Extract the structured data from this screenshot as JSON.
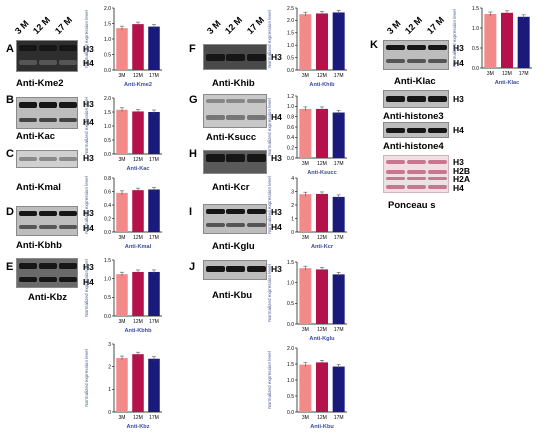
{
  "ages": [
    "3 M",
    "12 M",
    "17 M"
  ],
  "colors": {
    "bar_3M": "#f38a8a",
    "bar_12M": "#b3124b",
    "bar_17M": "#1a1a7a",
    "axis_title": "#4a5a9a",
    "chart_title": "#3a4ba3"
  },
  "panels": [
    {
      "letter": "A",
      "antibody": "Anti-Kme2",
      "bands": [
        "H3",
        "H4"
      ]
    },
    {
      "letter": "B",
      "antibody": "Anti-Kac",
      "bands": [
        "H3",
        "H4"
      ]
    },
    {
      "letter": "C",
      "antibody": "Anti-Kmal",
      "bands": [
        "H3"
      ]
    },
    {
      "letter": "D",
      "antibody": "Anti-Kbhb",
      "bands": [
        "H3",
        "H4"
      ]
    },
    {
      "letter": "E",
      "antibody": "Anti-Kbz",
      "bands": [
        "H3",
        "H4"
      ]
    },
    {
      "letter": "F",
      "antibody": "Anti-Khib",
      "bands": [
        "H3"
      ]
    },
    {
      "letter": "G",
      "antibody": "Anti-Ksucc",
      "bands": [
        "H4"
      ]
    },
    {
      "letter": "H",
      "antibody": "Anti-Kcr",
      "bands": [
        "H3"
      ]
    },
    {
      "letter": "I",
      "antibody": "Anti-Kglu",
      "bands": [
        "H3",
        "H4"
      ]
    },
    {
      "letter": "J",
      "antibody": "Anti-Kbu",
      "bands": [
        "H3"
      ]
    },
    {
      "letter": "K",
      "antibody": "Anti-Klac",
      "bands": [
        "H3",
        "H4"
      ]
    }
  ],
  "loading_controls": [
    {
      "antibody": "Anti-histone3",
      "bands": [
        "H3"
      ]
    },
    {
      "antibody": "Anti-histone4",
      "bands": [
        "H4"
      ]
    },
    {
      "antibody": "Ponceau s",
      "bands": [
        "H3",
        "H2B",
        "H2A",
        "H4"
      ]
    }
  ],
  "chart_data": [
    {
      "type": "bar",
      "title": "Anti-Kme2",
      "ylabel": "Normalized expression level",
      "categories": [
        "3M",
        "12M",
        "17M"
      ],
      "values": [
        1.35,
        1.48,
        1.4
      ],
      "ylim": [
        0,
        2.0
      ],
      "yticks": [
        "0.0",
        "0.5",
        "1.0",
        "1.5",
        "2.0"
      ]
    },
    {
      "type": "bar",
      "title": "Anti-Kac",
      "ylabel": "Normalized expression level",
      "categories": [
        "3M",
        "12M",
        "17M"
      ],
      "values": [
        1.58,
        1.52,
        1.5
      ],
      "ylim": [
        0,
        2.0
      ],
      "yticks": [
        "0.0",
        "0.5",
        "1.0",
        "1.5",
        "2.0"
      ]
    },
    {
      "type": "bar",
      "title": "Anti-Kmal",
      "ylabel": "Normalized expression level",
      "categories": [
        "3M",
        "12M",
        "17M"
      ],
      "values": [
        0.58,
        0.62,
        0.63
      ],
      "ylim": [
        0,
        0.8
      ],
      "yticks": [
        "0.0",
        "0.2",
        "0.4",
        "0.6",
        "0.8"
      ]
    },
    {
      "type": "bar",
      "title": "Anti-Kbhb",
      "ylabel": "Normalized expression level",
      "categories": [
        "3M",
        "12M",
        "17M"
      ],
      "values": [
        1.12,
        1.18,
        1.18
      ],
      "ylim": [
        0,
        1.5
      ],
      "yticks": [
        "0.0",
        "0.5",
        "1.0",
        "1.5"
      ]
    },
    {
      "type": "bar",
      "title": "Anti-Kbz",
      "ylabel": "Normalized expression level",
      "categories": [
        "3M",
        "12M",
        "17M"
      ],
      "values": [
        2.38,
        2.55,
        2.35
      ],
      "ylim": [
        0,
        3
      ],
      "yticks": [
        "0",
        "1",
        "2",
        "3"
      ]
    },
    {
      "type": "bar",
      "title": "Anti-Khib",
      "ylabel": "Normalized expression level",
      "categories": [
        "3M",
        "12M",
        "17M"
      ],
      "values": [
        2.25,
        2.28,
        2.32
      ],
      "ylim": [
        0,
        2.5
      ],
      "yticks": [
        "0.0",
        "0.5",
        "1.0",
        "1.5",
        "2.0",
        "2.5"
      ]
    },
    {
      "type": "bar",
      "title": "Anti-Ksucc",
      "ylabel": "Normalized expression level",
      "categories": [
        "3M",
        "12M",
        "17M"
      ],
      "values": [
        0.95,
        0.95,
        0.88
      ],
      "ylim": [
        0,
        1.2
      ],
      "yticks": [
        "0.0",
        "0.2",
        "0.4",
        "0.6",
        "0.8",
        "1.0",
        "1.2"
      ]
    },
    {
      "type": "bar",
      "title": "Anti-Kcr",
      "ylabel": "Normalized expression level",
      "categories": [
        "3M",
        "12M",
        "17M"
      ],
      "values": [
        2.8,
        2.82,
        2.6
      ],
      "ylim": [
        0,
        4
      ],
      "yticks": [
        "0",
        "1",
        "2",
        "3",
        "4"
      ]
    },
    {
      "type": "bar",
      "title": "Anti-Kglu",
      "ylabel": "Normalized expression level",
      "categories": [
        "3M",
        "12M",
        "17M"
      ],
      "values": [
        1.35,
        1.32,
        1.2
      ],
      "ylim": [
        0,
        1.5
      ],
      "yticks": [
        "0.0",
        "0.5",
        "1.0",
        "1.5"
      ]
    },
    {
      "type": "bar",
      "title": "Anti-Kbu",
      "ylabel": "Normalized expression level",
      "categories": [
        "3M",
        "12M",
        "17M"
      ],
      "values": [
        1.48,
        1.55,
        1.42
      ],
      "ylim": [
        0,
        2.0
      ],
      "yticks": [
        "0.0",
        "0.5",
        "1.0",
        "1.5",
        "2.0"
      ]
    },
    {
      "type": "bar",
      "title": "Anti-Klac",
      "ylabel": "Normalized expression level",
      "categories": [
        "3M",
        "12M",
        "17M"
      ],
      "values": [
        1.35,
        1.38,
        1.28
      ],
      "ylim": [
        0,
        1.5
      ],
      "yticks": [
        "0.0",
        "0.5",
        "1.0",
        "1.5"
      ]
    }
  ]
}
